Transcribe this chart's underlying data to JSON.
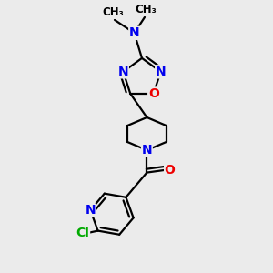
{
  "bg_color": "#ebebeb",
  "bond_color": "#000000",
  "bond_width": 1.6,
  "atom_colors": {
    "N": "#0000ee",
    "O": "#ee0000",
    "Cl": "#00aa00",
    "C": "#000000"
  },
  "font_size_atom": 10,
  "font_size_methyl": 8.5,
  "figsize": [
    3.0,
    3.0
  ],
  "dpi": 100,
  "xlim": [
    0,
    10
  ],
  "ylim": [
    0,
    10
  ]
}
